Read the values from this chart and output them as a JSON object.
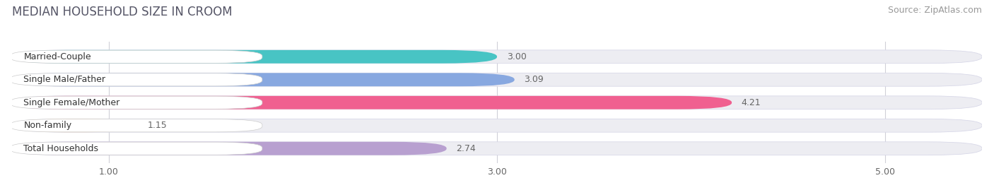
{
  "title": "MEDIAN HOUSEHOLD SIZE IN CROOM",
  "source": "Source: ZipAtlas.com",
  "categories": [
    "Married-Couple",
    "Single Male/Father",
    "Single Female/Mother",
    "Non-family",
    "Total Households"
  ],
  "values": [
    3.0,
    3.09,
    4.21,
    1.15,
    2.74
  ],
  "bar_colors": [
    "#48c4c4",
    "#88a8e0",
    "#f06090",
    "#f5c890",
    "#b8a0d0"
  ],
  "bar_edge_colors": [
    "#38b0b0",
    "#6888c0",
    "#d04070",
    "#d8a878",
    "#9880b8"
  ],
  "xlim": [
    0.5,
    5.5
  ],
  "xmin": 0.5,
  "xticks": [
    1.0,
    3.0,
    5.0
  ],
  "background_color": "#ffffff",
  "bar_bg_color": "#ededf2",
  "bar_bg_edge_color": "#d8d8e8",
  "grid_color": "#d0d0d8",
  "title_color": "#555566",
  "source_color": "#999999",
  "label_color": "#333333",
  "value_color": "#666666",
  "title_fontsize": 12,
  "source_fontsize": 9,
  "label_fontsize": 9,
  "value_fontsize": 9
}
